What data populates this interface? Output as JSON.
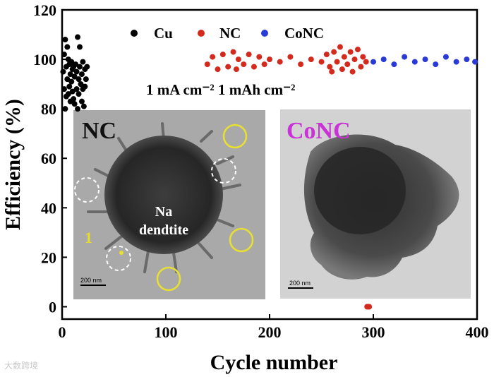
{
  "chart_data": {
    "type": "scatter",
    "xlabel": "Cycle number",
    "ylabel": "Efficiency (%)",
    "xlim": [
      0,
      400
    ],
    "ylim": [
      -5,
      120
    ],
    "xticks": [
      0,
      100,
      200,
      300,
      400
    ],
    "yticks": [
      0,
      20,
      40,
      60,
      80,
      100,
      120
    ],
    "legend_position": "top",
    "condition": "1 mA cm⁻² 1 mAh cm⁻²",
    "series": [
      {
        "name": "Cu",
        "color": "#000000",
        "points": [
          [
            1,
            95
          ],
          [
            2,
            102
          ],
          [
            2,
            88
          ],
          [
            3,
            108
          ],
          [
            3,
            80
          ],
          [
            4,
            97
          ],
          [
            4,
            85
          ],
          [
            5,
            105
          ],
          [
            5,
            92
          ],
          [
            6,
            100
          ],
          [
            6,
            86
          ],
          [
            7,
            98
          ],
          [
            7,
            89
          ],
          [
            8,
            94
          ],
          [
            8,
            83
          ],
          [
            9,
            99
          ],
          [
            9,
            91
          ],
          [
            10,
            87
          ],
          [
            10,
            96
          ],
          [
            11,
            84
          ],
          [
            11,
            97
          ],
          [
            12,
            93
          ],
          [
            12,
            82
          ],
          [
            13,
            98
          ],
          [
            14,
            88
          ],
          [
            14,
            95
          ],
          [
            15,
            109
          ],
          [
            15,
            80
          ],
          [
            16,
            92
          ],
          [
            16,
            86
          ],
          [
            17,
            97
          ],
          [
            17,
            105
          ],
          [
            18,
            90
          ],
          [
            19,
            94
          ],
          [
            19,
            83
          ],
          [
            20,
            99
          ],
          [
            20,
            88
          ],
          [
            21,
            81
          ],
          [
            22,
            96
          ],
          [
            22,
            89
          ],
          [
            23,
            92
          ],
          [
            24,
            97
          ]
        ]
      },
      {
        "name": "NC",
        "color": "#d42a1e",
        "points": [
          [
            140,
            98
          ],
          [
            145,
            101
          ],
          [
            150,
            96
          ],
          [
            155,
            102
          ],
          [
            160,
            97
          ],
          [
            165,
            103
          ],
          [
            168,
            96
          ],
          [
            170,
            100
          ],
          [
            175,
            98
          ],
          [
            180,
            102
          ],
          [
            185,
            97
          ],
          [
            190,
            101
          ],
          [
            195,
            98
          ],
          [
            200,
            100
          ],
          [
            210,
            99
          ],
          [
            220,
            101
          ],
          [
            230,
            98
          ],
          [
            240,
            100
          ],
          [
            250,
            99
          ],
          [
            255,
            102
          ],
          [
            258,
            97
          ],
          [
            260,
            95
          ],
          [
            262,
            103
          ],
          [
            265,
            99
          ],
          [
            268,
            105
          ],
          [
            270,
            96
          ],
          [
            272,
            101
          ],
          [
            275,
            98
          ],
          [
            278,
            103
          ],
          [
            280,
            95
          ],
          [
            282,
            100
          ],
          [
            285,
            104
          ],
          [
            288,
            97
          ],
          [
            290,
            101
          ],
          [
            293,
            99
          ],
          [
            294,
            0
          ],
          [
            295,
            0
          ],
          [
            296,
            0
          ]
        ]
      },
      {
        "name": "CoNC",
        "color": "#2a3ad6",
        "points": [
          [
            300,
            99
          ],
          [
            310,
            100
          ],
          [
            320,
            98
          ],
          [
            330,
            101
          ],
          [
            340,
            99
          ],
          [
            350,
            100
          ],
          [
            360,
            98
          ],
          [
            370,
            101
          ],
          [
            380,
            99
          ],
          [
            390,
            100
          ],
          [
            398,
            99
          ]
        ]
      }
    ]
  },
  "insets": [
    {
      "label": "NC",
      "label_color": "#111111",
      "center_text_line1": "Na",
      "center_text_line2": "dendtite",
      "marker_number": "1",
      "scale_bar": "200 nm"
    },
    {
      "label": "CoNC",
      "label_color": "#c832d6",
      "scale_bar": "200 nm"
    }
  ],
  "watermark": "大数跨境"
}
